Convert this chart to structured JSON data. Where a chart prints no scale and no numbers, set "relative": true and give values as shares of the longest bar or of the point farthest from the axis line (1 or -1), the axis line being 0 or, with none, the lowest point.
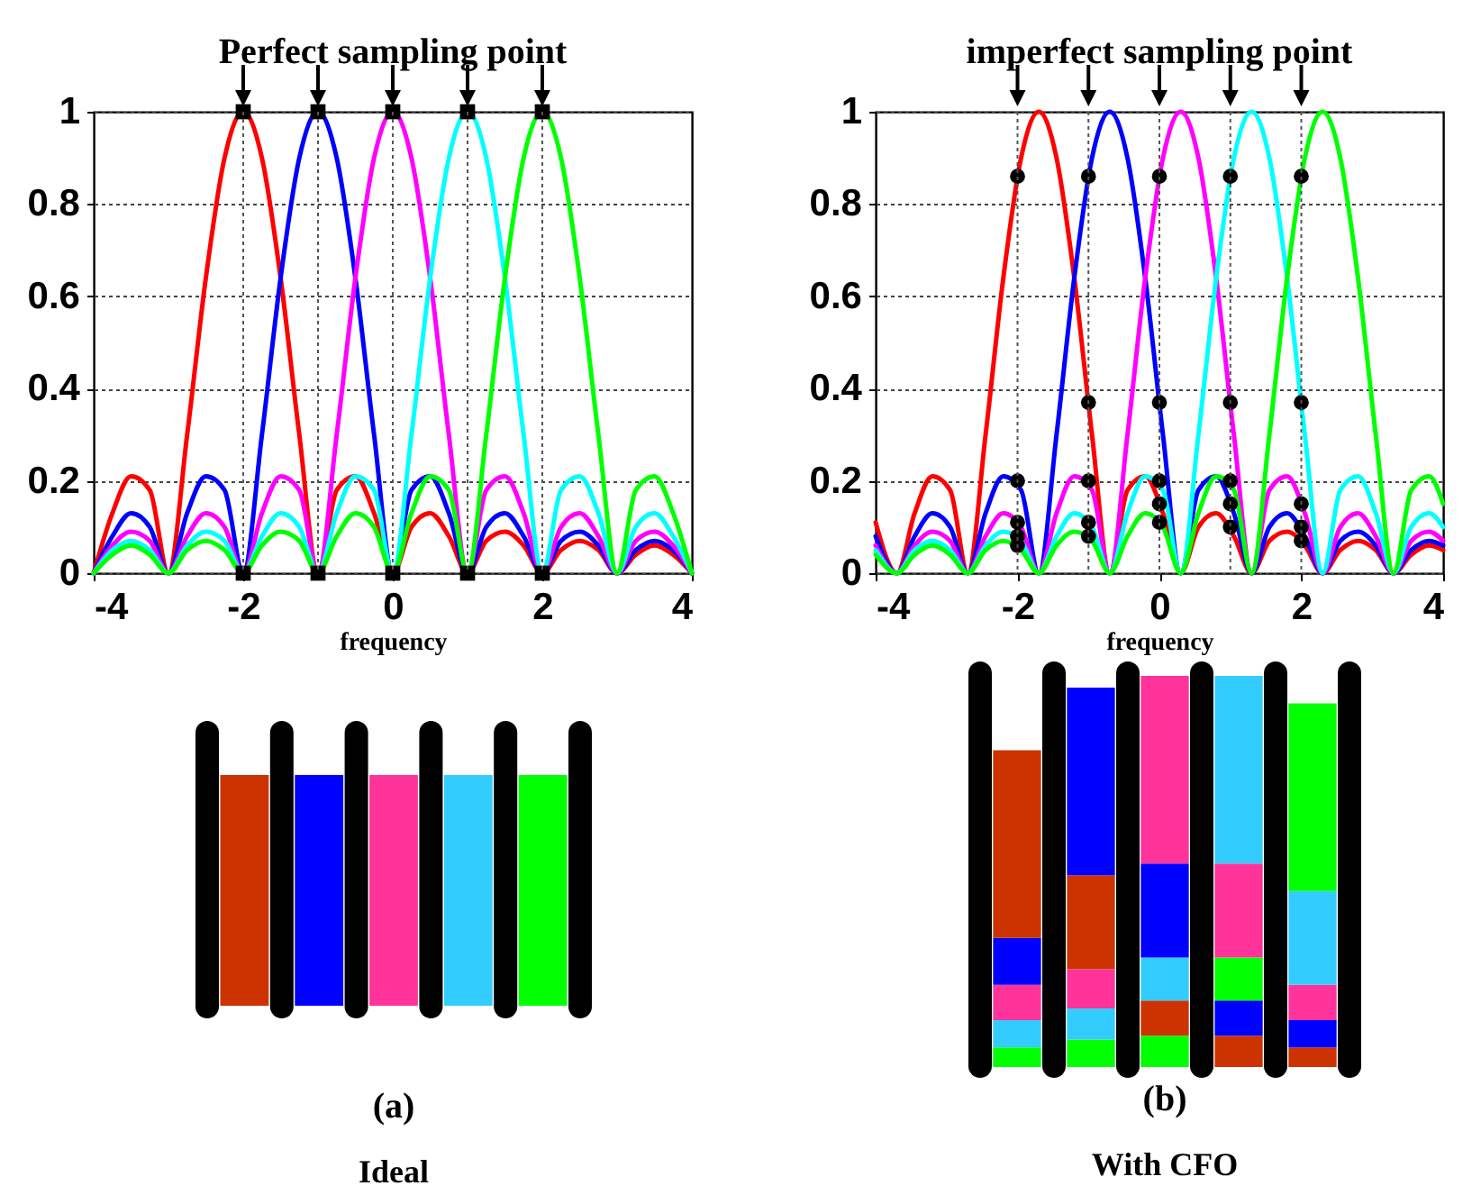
{
  "chart_data": [
    {
      "type": "line",
      "title": "Perfect sampling point",
      "xlabel": "frequency",
      "xlim": [
        -4,
        4
      ],
      "xticks": [
        -4,
        -2,
        0,
        2,
        4
      ],
      "ylim": [
        0,
        1
      ],
      "yticks": [
        0,
        0.2,
        0.4,
        0.6,
        0.8,
        1
      ],
      "grid": "y",
      "x": [
        -4,
        -3.75,
        -3.5,
        -3.25,
        -3,
        -2.75,
        -2.5,
        -2.25,
        -2,
        -1.75,
        -1.5,
        -1.25,
        -1,
        -0.75,
        -0.5,
        -0.25,
        0,
        0.25,
        0.5,
        0.75,
        1,
        1.25,
        1.5,
        1.75,
        2,
        2.25,
        2.5,
        2.75,
        3,
        3.25,
        3.5,
        3.75,
        4
      ],
      "ref_lines": [
        {
          "axis": "x",
          "value": -2,
          "color": "#555555",
          "line_style": "dotted"
        },
        {
          "axis": "x",
          "value": -1,
          "color": "#555555",
          "line_style": "dotted"
        },
        {
          "axis": "x",
          "value": 0,
          "color": "#555555",
          "line_style": "dotted"
        },
        {
          "axis": "x",
          "value": 1,
          "color": "#555555",
          "line_style": "dotted"
        },
        {
          "axis": "x",
          "value": 2,
          "color": "#555555",
          "line_style": "dotted"
        }
      ],
      "series": [
        {
          "color": "#ff0000",
          "values": [
            0,
            0.13,
            0.21,
            0.18,
            0,
            0.3,
            0.64,
            0.9,
            1,
            0.9,
            0.64,
            0.3,
            0,
            0.18,
            0.21,
            0.13,
            0,
            0.1,
            0.13,
            0.08,
            0,
            0.07,
            0.09,
            0.06,
            0,
            0.05,
            0.07,
            0.05,
            0,
            0.04,
            0.06,
            0.04,
            0
          ]
        },
        {
          "color": "#0000ff",
          "values": [
            0,
            0.08,
            0.13,
            0.1,
            0,
            0.13,
            0.21,
            0.18,
            0,
            0.3,
            0.64,
            0.9,
            1,
            0.9,
            0.64,
            0.3,
            0,
            0.18,
            0.21,
            0.13,
            0,
            0.1,
            0.13,
            0.08,
            0,
            0.07,
            0.09,
            0.06,
            0,
            0.05,
            0.07,
            0.05,
            0
          ]
        },
        {
          "color": "#ff00ff",
          "values": [
            0,
            0.06,
            0.09,
            0.07,
            0,
            0.08,
            0.13,
            0.1,
            0,
            0.13,
            0.21,
            0.18,
            0,
            0.3,
            0.64,
            0.9,
            1,
            0.9,
            0.64,
            0.3,
            0,
            0.18,
            0.21,
            0.13,
            0,
            0.1,
            0.13,
            0.08,
            0,
            0.07,
            0.09,
            0.06,
            0
          ]
        },
        {
          "color": "#00ffff",
          "values": [
            0,
            0.05,
            0.07,
            0.05,
            0,
            0.06,
            0.09,
            0.07,
            0,
            0.08,
            0.13,
            0.1,
            0,
            0.13,
            0.21,
            0.18,
            0,
            0.3,
            0.64,
            0.9,
            1,
            0.9,
            0.64,
            0.3,
            0,
            0.18,
            0.21,
            0.13,
            0,
            0.1,
            0.13,
            0.08,
            0
          ]
        },
        {
          "color": "#00ff00",
          "values": [
            0,
            0.04,
            0.06,
            0.04,
            0,
            0.05,
            0.07,
            0.05,
            0,
            0.06,
            0.09,
            0.07,
            0,
            0.08,
            0.13,
            0.1,
            0,
            0.13,
            0.21,
            0.18,
            0,
            0.3,
            0.64,
            0.9,
            1,
            0.9,
            0.64,
            0.3,
            0,
            0.18,
            0.21,
            0.13,
            0
          ]
        },
        {
          "type": "scatter",
          "marker": "square",
          "color": "#000000",
          "x": [
            -2,
            -1,
            0,
            1,
            2,
            -2,
            -1,
            0,
            1,
            2
          ],
          "values": [
            1,
            1,
            1,
            1,
            1,
            0,
            0,
            0,
            0,
            0
          ]
        }
      ]
    },
    {
      "type": "line",
      "title": "imperfect sampling point",
      "xlabel": "frequency",
      "xlim": [
        -4,
        4
      ],
      "xticks": [
        -4,
        -2,
        0,
        2,
        4
      ],
      "ylim": [
        0,
        1
      ],
      "yticks": [
        0,
        0.2,
        0.4,
        0.6,
        0.8,
        1
      ],
      "grid": "y",
      "x": [
        -4,
        -3.7,
        -3.45,
        -3.2,
        -2.95,
        -2.7,
        -2.45,
        -2.2,
        -1.95,
        -1.7,
        -1.45,
        -1.2,
        -0.95,
        -0.7,
        -0.45,
        -0.2,
        0.05,
        0.3,
        0.55,
        0.8,
        1.05,
        1.3,
        1.55,
        1.8,
        2.05,
        2.3,
        2.55,
        2.8,
        3.05,
        3.3,
        3.55,
        3.8,
        4
      ],
      "ref_lines": [
        {
          "axis": "x",
          "value": -2,
          "color": "#555555",
          "line_style": "dotted"
        },
        {
          "axis": "x",
          "value": -1,
          "color": "#555555",
          "line_style": "dotted"
        },
        {
          "axis": "x",
          "value": 0,
          "color": "#555555",
          "line_style": "dotted"
        },
        {
          "axis": "x",
          "value": 1,
          "color": "#555555",
          "line_style": "dotted"
        },
        {
          "axis": "x",
          "value": 2,
          "color": "#555555",
          "line_style": "dotted"
        }
      ],
      "series": [
        {
          "color": "#ff0000",
          "values": [
            0.11,
            0,
            0.13,
            0.21,
            0.18,
            0,
            0.3,
            0.64,
            0.9,
            1,
            0.9,
            0.64,
            0.3,
            0,
            0.18,
            0.21,
            0.13,
            0,
            0.1,
            0.13,
            0.08,
            0,
            0.07,
            0.09,
            0.06,
            0,
            0.05,
            0.07,
            0.05,
            0,
            0.04,
            0.06,
            0.05
          ]
        },
        {
          "color": "#0000ff",
          "values": [
            0.08,
            0,
            0.08,
            0.13,
            0.1,
            0,
            0.13,
            0.21,
            0.18,
            0,
            0.3,
            0.64,
            0.9,
            1,
            0.9,
            0.64,
            0.3,
            0,
            0.18,
            0.21,
            0.13,
            0,
            0.1,
            0.13,
            0.08,
            0,
            0.07,
            0.09,
            0.06,
            0,
            0.05,
            0.07,
            0.06
          ]
        },
        {
          "color": "#ff00ff",
          "values": [
            0.06,
            0,
            0.06,
            0.09,
            0.07,
            0,
            0.08,
            0.13,
            0.1,
            0,
            0.13,
            0.21,
            0.18,
            0,
            0.3,
            0.64,
            0.9,
            1,
            0.9,
            0.64,
            0.3,
            0,
            0.18,
            0.21,
            0.13,
            0,
            0.1,
            0.13,
            0.08,
            0,
            0.07,
            0.09,
            0.07
          ]
        },
        {
          "color": "#00ffff",
          "values": [
            0.05,
            0,
            0.05,
            0.07,
            0.05,
            0,
            0.06,
            0.09,
            0.07,
            0,
            0.08,
            0.13,
            0.1,
            0,
            0.13,
            0.21,
            0.18,
            0,
            0.3,
            0.64,
            0.9,
            1,
            0.9,
            0.64,
            0.3,
            0,
            0.18,
            0.21,
            0.13,
            0,
            0.1,
            0.13,
            0.1
          ]
        },
        {
          "color": "#00ff00",
          "values": [
            0.04,
            0,
            0.04,
            0.06,
            0.04,
            0,
            0.05,
            0.07,
            0.05,
            0,
            0.06,
            0.09,
            0.07,
            0,
            0.08,
            0.13,
            0.1,
            0,
            0.13,
            0.21,
            0.18,
            0,
            0.3,
            0.64,
            0.9,
            1,
            0.9,
            0.64,
            0.3,
            0,
            0.18,
            0.21,
            0.15
          ]
        },
        {
          "type": "scatter",
          "marker": "circle",
          "color": "#000000",
          "x": [
            -2,
            -2,
            -2,
            -2,
            -2,
            -1,
            -1,
            -1,
            -1,
            -1,
            0,
            0,
            0,
            0,
            0,
            1,
            1,
            1,
            1,
            1,
            2,
            2,
            2,
            2,
            2
          ],
          "values": [
            0.86,
            0.2,
            0.11,
            0.08,
            0.06,
            0.86,
            0.37,
            0.2,
            0.11,
            0.08,
            0.86,
            0.37,
            0.2,
            0.15,
            0.11,
            0.86,
            0.37,
            0.2,
            0.15,
            0.1,
            0.86,
            0.37,
            0.15,
            0.1,
            0.07
          ]
        }
      ]
    },
    {
      "type": "bar",
      "relative": true,
      "title": "(a)",
      "subtitle": "Ideal",
      "categories": [
        null,
        null,
        null,
        null,
        null
      ],
      "values": [
        1,
        1,
        1,
        1,
        1
      ],
      "colors": [
        "#cc3300",
        "#0000ff",
        "#ff3399",
        "#33ccff",
        "#00ff00"
      ]
    },
    {
      "type": "bar",
      "relative": true,
      "stacked": true,
      "title": "(b)",
      "subtitle": "With CFO",
      "categories": [
        null,
        null,
        null,
        null,
        null
      ],
      "series": [
        {
          "values": [
            0.05,
            0.07,
            0.08,
            0.08,
            0.05
          ],
          "colors": [
            "#00ff00",
            "#00ff00",
            "#00ff00",
            "#cc3300",
            "#cc3300"
          ]
        },
        {
          "values": [
            0.07,
            0.08,
            0.09,
            0.09,
            0.07
          ],
          "colors": [
            "#33ccff",
            "#33ccff",
            "#cc3300",
            "#0000ff",
            "#0000ff"
          ]
        },
        {
          "values": [
            0.09,
            0.1,
            0.11,
            0.11,
            0.09
          ],
          "colors": [
            "#ff3399",
            "#ff3399",
            "#33ccff",
            "#00ff00",
            "#ff3399"
          ]
        },
        {
          "values": [
            0.12,
            0.24,
            0.24,
            0.24,
            0.24
          ],
          "colors": [
            "#0000ff",
            "#cc3300",
            "#0000ff",
            "#ff3399",
            "#33ccff"
          ]
        },
        {
          "values": [
            0.48,
            0.48,
            0.48,
            0.48,
            0.48
          ],
          "colors": [
            "#cc3300",
            "#0000ff",
            "#ff3399",
            "#33ccff",
            "#00ff00"
          ]
        }
      ]
    }
  ]
}
